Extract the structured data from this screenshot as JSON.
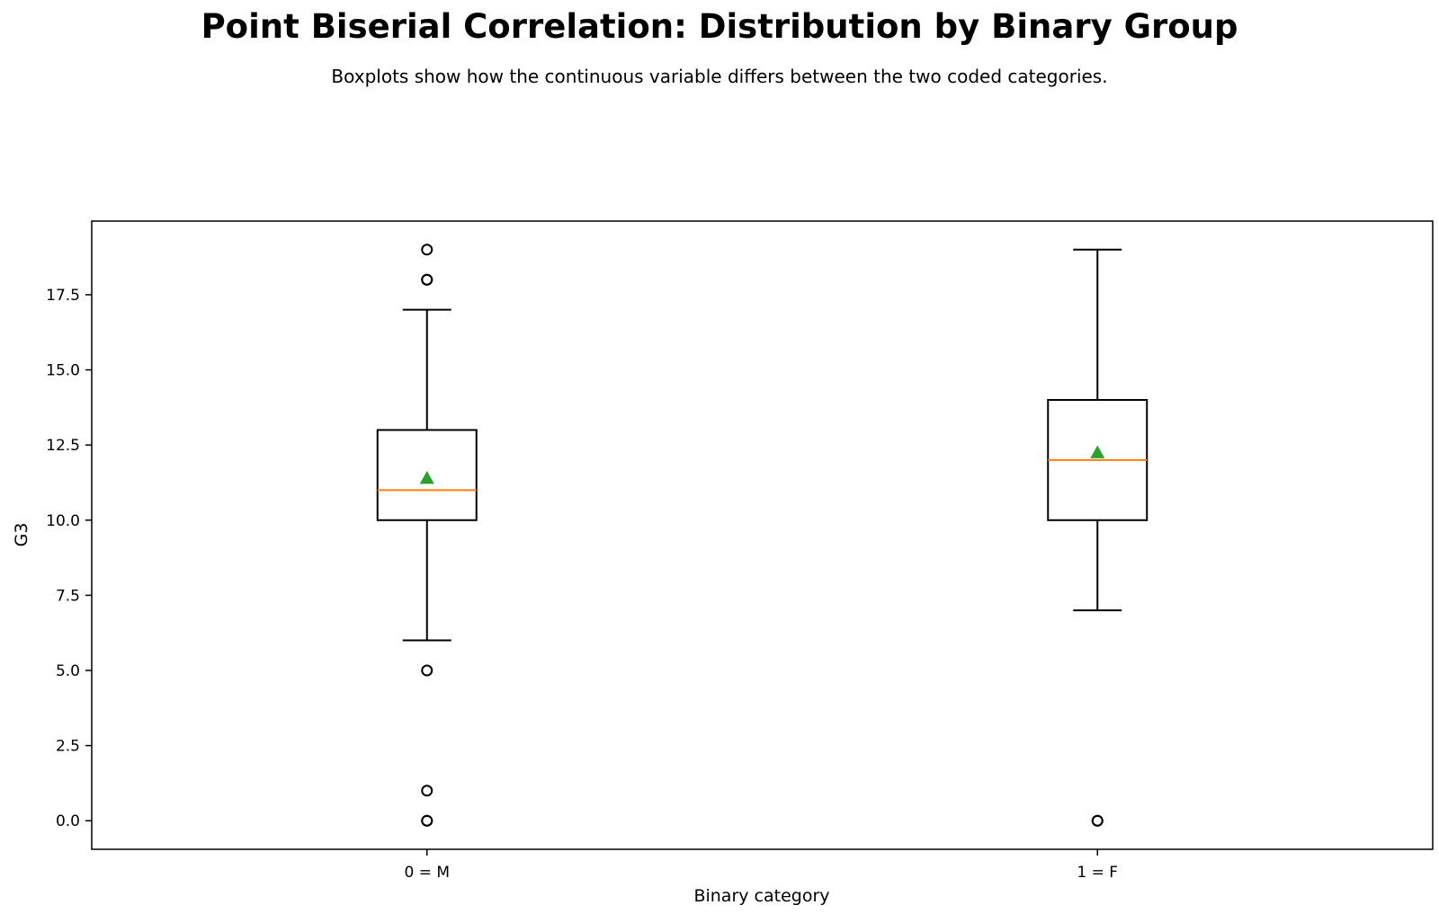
{
  "chart_data": {
    "type": "boxplot",
    "title": "Point Biserial Correlation: Distribution by Binary Group",
    "subtitle": "Boxplots show how the continuous variable differs between the two coded categories.",
    "xlabel": "Binary category",
    "ylabel": "G3",
    "ylim": [
      -0.95,
      19.95
    ],
    "yticks": [
      0.0,
      2.5,
      5.0,
      7.5,
      10.0,
      12.5,
      15.0,
      17.5
    ],
    "yticklabels": [
      "0.0",
      "2.5",
      "5.0",
      "7.5",
      "10.0",
      "12.5",
      "15.0",
      "17.5"
    ],
    "categories": [
      "0 = M",
      "1 = F"
    ],
    "groups": [
      {
        "label": "0 = M",
        "whisker_low": 6,
        "q1": 10,
        "median": 11,
        "q3": 13,
        "whisker_high": 17,
        "mean": 11.4,
        "outliers": [
          19,
          18,
          18,
          5,
          1,
          0,
          0
        ]
      },
      {
        "label": "1 = F",
        "whisker_low": 7,
        "q1": 10,
        "median": 12,
        "q3": 14,
        "whisker_high": 19,
        "mean": 12.25,
        "outliers": [
          0,
          0
        ]
      }
    ],
    "grid": false,
    "colors": {
      "box": "#000000",
      "median": "#ff7f0e",
      "mean": "#2ca02c",
      "outlier": "#000000"
    }
  }
}
